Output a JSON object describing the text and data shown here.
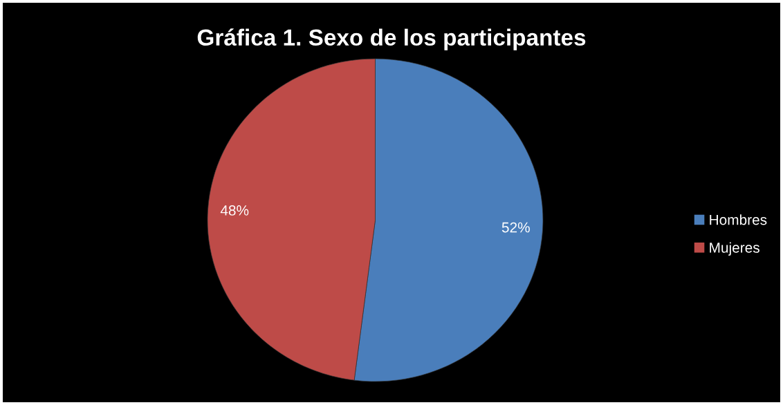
{
  "chart_data": {
    "type": "pie",
    "title": "Gráfica 1. Sexo de los participantes",
    "categories": [
      "Hombres",
      "Mujeres"
    ],
    "values": [
      52,
      48
    ],
    "colors": [
      "#4a7ebb",
      "#be4b48"
    ],
    "value_labels": [
      "52%",
      "48%"
    ],
    "legend": "right"
  }
}
